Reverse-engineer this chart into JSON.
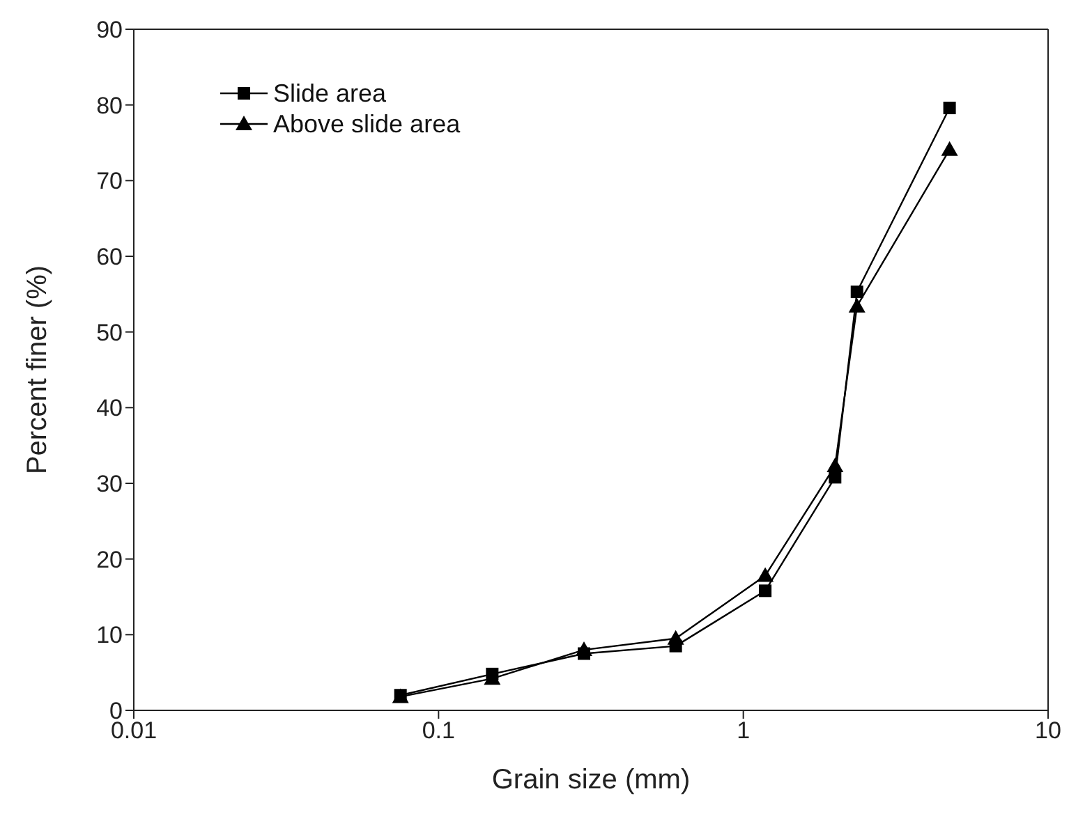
{
  "chart_data": {
    "type": "line",
    "xlabel": "Grain size (mm)",
    "ylabel": "Percent finer (%)",
    "x": [
      0.075,
      0.15,
      0.3,
      0.6,
      1.18,
      2,
      2.36,
      4.75
    ],
    "series": [
      {
        "name": "Slide area",
        "color": "#000000",
        "marker": "square",
        "values": [
          2.0,
          4.8,
          7.5,
          8.5,
          15.8,
          30.8,
          55.3,
          79.6
        ]
      },
      {
        "name": "Above slide area",
        "color": "#000000",
        "marker": "triangle",
        "values": [
          1.8,
          4.2,
          8.0,
          9.5,
          17.8,
          32.3,
          53.4,
          74.1
        ]
      }
    ],
    "log": "x",
    "xlim": [
      0.01,
      10
    ],
    "xticks": [
      0.01,
      0.1,
      1,
      10
    ],
    "ylim": [
      0,
      90
    ],
    "yticks": [
      0,
      10,
      20,
      30,
      40,
      50,
      60,
      70,
      80,
      90
    ],
    "grid": false,
    "legend": "top left"
  }
}
